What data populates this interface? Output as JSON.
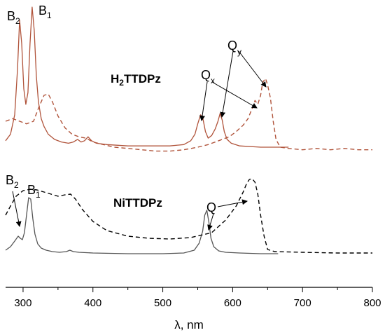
{
  "chart_data": {
    "type": "line",
    "xlabel": "λ, nm",
    "ylabel": "",
    "xlim": [
      275,
      800
    ],
    "x_ticks": [
      "300",
      "400",
      "500",
      "600",
      "700",
      "800"
    ],
    "compounds": [
      {
        "label_main": "H",
        "label_sub": "2",
        "label_rest": "TTDPz",
        "color": "#b0533a",
        "series": [
          {
            "style": "solid",
            "x": [
              275,
              282,
              288,
              292,
              295,
              298,
              301,
              304,
              307,
              310,
              313,
              316,
              319,
              322,
              326,
              330,
              336,
              345,
              355,
              365,
              372,
              378,
              383,
              388,
              393,
              398,
              405,
              420,
              450,
              480,
              510,
              530,
              540,
              546,
              550,
              554,
              557,
              561,
              565,
              570,
              575,
              579,
              582,
              585,
              588,
              592,
              598,
              610,
              640,
              670,
              680
            ],
            "y": [
              0.05,
              0.1,
              0.25,
              0.6,
              0.98,
              0.8,
              0.45,
              0.33,
              0.42,
              0.8,
              1.08,
              0.9,
              0.55,
              0.35,
              0.22,
              0.16,
              0.1,
              0.06,
              0.04,
              0.03,
              0.04,
              0.06,
              0.04,
              0.05,
              0.08,
              0.05,
              0.03,
              0.02,
              0.01,
              0.01,
              0.01,
              0.02,
              0.05,
              0.1,
              0.18,
              0.25,
              0.23,
              0.12,
              0.07,
              0.09,
              0.14,
              0.2,
              0.26,
              0.21,
              0.12,
              0.06,
              0.03,
              0.01,
              0.0,
              0.0,
              0.0
            ]
          },
          {
            "style": "dashed",
            "x": [
              275,
              285,
              295,
              305,
              315,
              322,
              330,
              336,
              342,
              350,
              360,
              370,
              380,
              390,
              400,
              415,
              430,
              450,
              470,
              490,
              510,
              530,
              550,
              565,
              580,
              595,
              605,
              615,
              622,
              628,
              632,
              636,
              640,
              643,
              647,
              650,
              654,
              658,
              662,
              668,
              680,
              700,
              720,
              740,
              760,
              780,
              800
            ],
            "y": [
              0.2,
              0.22,
              0.2,
              0.18,
              0.2,
              0.3,
              0.4,
              0.41,
              0.35,
              0.24,
              0.15,
              0.1,
              0.08,
              0.07,
              0.04,
              0.02,
              0.0,
              -0.01,
              -0.02,
              -0.03,
              -0.03,
              -0.02,
              0.0,
              0.02,
              0.05,
              0.08,
              0.12,
              0.17,
              0.22,
              0.3,
              0.36,
              0.33,
              0.4,
              0.5,
              0.53,
              0.48,
              0.38,
              0.2,
              0.06,
              0.0,
              -0.01,
              -0.02,
              -0.01,
              -0.02,
              -0.01,
              -0.02,
              -0.02
            ]
          }
        ],
        "peak_labels": [
          {
            "main": "B",
            "sub": "2"
          },
          {
            "main": "B",
            "sub": "1"
          },
          {
            "main": "Q",
            "sub": "x"
          },
          {
            "main": "Q",
            "sub": "y"
          }
        ]
      },
      {
        "label_main": "NiTTDPz",
        "color": "#555555",
        "series": [
          {
            "style": "solid",
            "x": [
              275,
              282,
              288,
              293,
              296,
              299,
              302,
              305,
              308,
              311,
              314,
              317,
              321,
              326,
              333,
              342,
              352,
              362,
              367,
              372,
              380,
              400,
              450,
              500,
              530,
              545,
              552,
              557,
              560,
              563,
              566,
              569,
              573,
              580,
              590,
              610,
              640,
              665
            ],
            "y": [
              0.05,
              0.1,
              0.18,
              0.25,
              0.22,
              0.2,
              0.3,
              0.55,
              0.8,
              0.78,
              0.5,
              0.28,
              0.14,
              0.08,
              0.05,
              0.03,
              0.02,
              0.03,
              0.05,
              0.03,
              0.02,
              0.01,
              0.0,
              0.0,
              0.01,
              0.05,
              0.15,
              0.32,
              0.55,
              0.62,
              0.45,
              0.22,
              0.1,
              0.04,
              0.02,
              0.01,
              0.0,
              0.0
            ]
          },
          {
            "style": "dashed",
            "x": [
              275,
              282,
              290,
              300,
              310,
              320,
              330,
              340,
              350,
              360,
              368,
              375,
              385,
              400,
              420,
              450,
              480,
              510,
              540,
              570,
              590,
              605,
              615,
              620,
              624,
              628,
              632,
              636,
              640,
              645,
              650,
              660,
              700,
              750,
              800
            ],
            "y": [
              0.55,
              0.68,
              0.82,
              0.9,
              0.92,
              0.91,
              0.88,
              0.85,
              0.82,
              0.84,
              0.85,
              0.78,
              0.63,
              0.46,
              0.33,
              0.25,
              0.22,
              0.21,
              0.23,
              0.3,
              0.48,
              0.68,
              0.88,
              1.0,
              1.06,
              1.07,
              1.02,
              0.85,
              0.55,
              0.25,
              0.06,
              0.03,
              0.02,
              0.01,
              0.01
            ]
          }
        ],
        "peak_labels": [
          {
            "main": "B",
            "sub": "2"
          },
          {
            "main": "B",
            "sub": "1"
          },
          {
            "main": "Q",
            "sub": ""
          }
        ]
      }
    ]
  }
}
